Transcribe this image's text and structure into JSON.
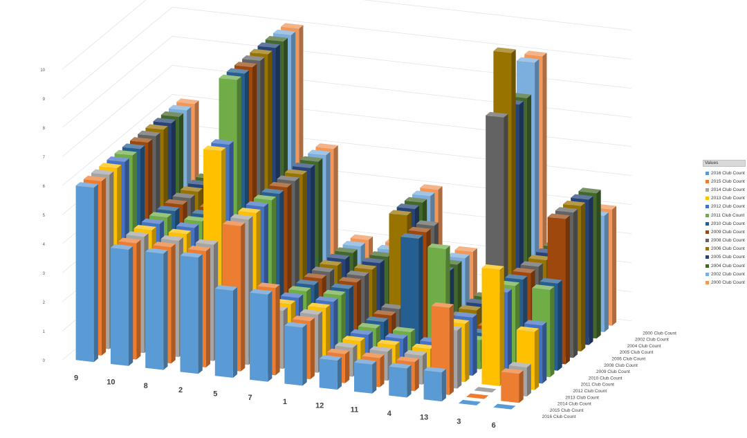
{
  "chart_data": {
    "type": "bar",
    "subtype": "3d-column",
    "title": "",
    "xlabel": "",
    "ylabel": "",
    "ylim": [
      0,
      10
    ],
    "yticks": [
      "0",
      "1",
      "2",
      "3",
      "4",
      "5",
      "6",
      "7",
      "8",
      "9",
      "10"
    ],
    "grid": true,
    "legend_title": "Values",
    "legend_position": "right",
    "categories": [
      "9",
      "10",
      "8",
      "2",
      "5",
      "7",
      "1",
      "12",
      "11",
      "4",
      "13",
      "3",
      "6"
    ],
    "series": [
      {
        "name": "2016 Club Count",
        "color": "#5b9bd5",
        "values": [
          6,
          4,
          4,
          4,
          3,
          3,
          2,
          1,
          1,
          1,
          1,
          0,
          0
        ]
      },
      {
        "name": "2015 Club Count",
        "color": "#ed7d31",
        "values": [
          6,
          4,
          4,
          4,
          5,
          3,
          2,
          1,
          1,
          1,
          3,
          0,
          1
        ]
      },
      {
        "name": "2014 Club Count",
        "color": "#a5a5a5",
        "values": [
          6,
          4,
          4,
          4,
          5,
          2,
          2,
          1,
          1,
          1,
          2,
          0,
          1
        ]
      },
      {
        "name": "2013 Club Count",
        "color": "#ffc000",
        "values": [
          6,
          4,
          4,
          7,
          5,
          2,
          2,
          1,
          1,
          1,
          2,
          4,
          2
        ]
      },
      {
        "name": "2012 Club Count",
        "color": "#4472c4",
        "values": [
          6,
          4,
          4,
          7,
          5,
          2,
          2,
          1,
          1,
          1,
          2,
          3,
          2
        ]
      },
      {
        "name": "2011 Club Count",
        "color": "#70ad47",
        "values": [
          6,
          4,
          4,
          9,
          5,
          2,
          2,
          1,
          1,
          4,
          1,
          3,
          3
        ]
      },
      {
        "name": "2010 Club Count",
        "color": "#255e91",
        "values": [
          6,
          4,
          4,
          9,
          5,
          2,
          2,
          1,
          4,
          1,
          1,
          3,
          3
        ]
      },
      {
        "name": "2009 Club Count",
        "color": "#9e480e",
        "values": [
          6,
          4,
          4,
          9,
          5,
          2,
          2,
          1,
          4,
          1,
          1,
          3,
          5
        ]
      },
      {
        "name": "2008 Club Count",
        "color": "#636363",
        "values": [
          6,
          4,
          4,
          9,
          5,
          2,
          2,
          1,
          4,
          1,
          8,
          3,
          5
        ]
      },
      {
        "name": "2006 Club Count",
        "color": "#997300",
        "values": [
          6,
          4,
          4,
          9,
          5,
          2,
          2,
          4,
          2,
          1,
          10,
          3,
          5
        ]
      },
      {
        "name": "2005 Club Count",
        "color": "#264478",
        "values": [
          6,
          4,
          4,
          9,
          5,
          2,
          2,
          4,
          2,
          1,
          8,
          3,
          5
        ]
      },
      {
        "name": "2004 Club Count",
        "color": "#43682b",
        "values": [
          6,
          4,
          4,
          9,
          5,
          2,
          2,
          4,
          2,
          1,
          8,
          3,
          5
        ]
      },
      {
        "name": "2002 Club Count",
        "color": "#7cafdd",
        "values": [
          6,
          4,
          4,
          9,
          5,
          2,
          2,
          4,
          2,
          1,
          9,
          3,
          4
        ]
      },
      {
        "name": "2000 Club Count",
        "color": "#f1975a",
        "values": [
          6,
          4,
          4,
          9,
          5,
          2,
          2,
          4,
          2,
          1,
          9,
          3,
          4
        ]
      }
    ]
  }
}
